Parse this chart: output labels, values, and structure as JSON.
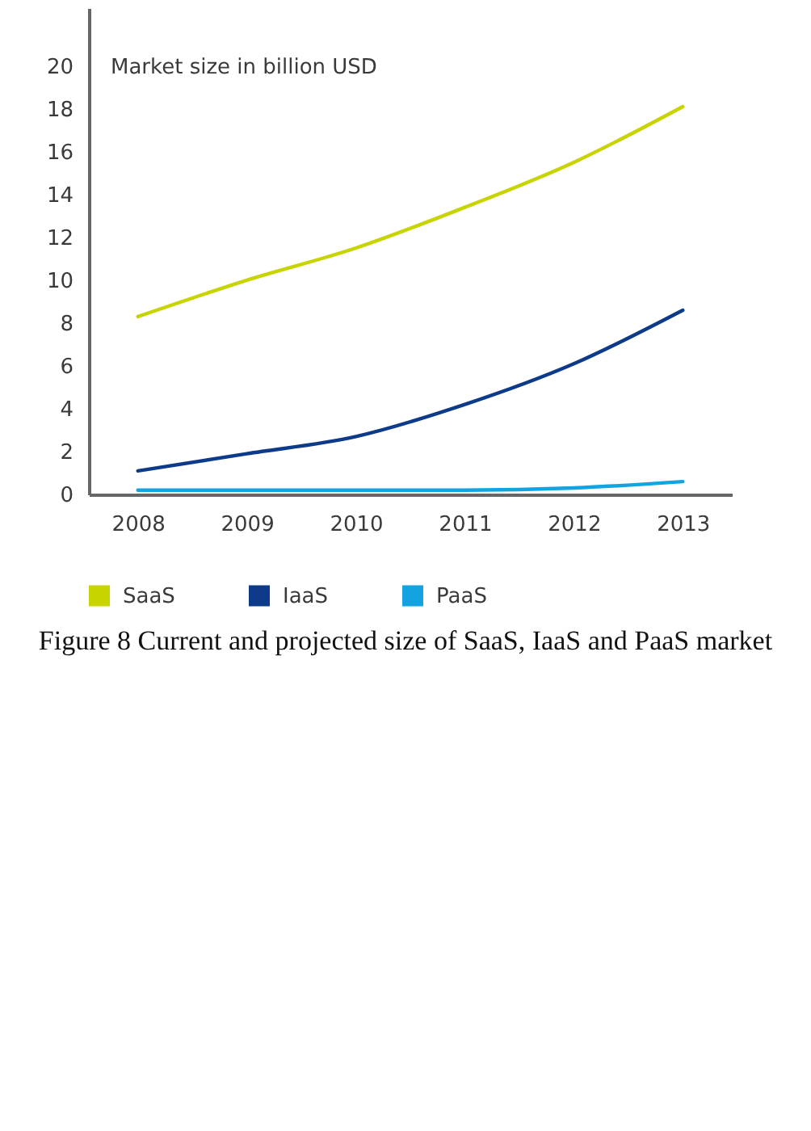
{
  "chart_data": {
    "type": "line",
    "ylabel": "Market size in billion USD",
    "categories": [
      "2008",
      "2009",
      "2010",
      "2011",
      "2012",
      "2013"
    ],
    "series": [
      {
        "name": "SaaS",
        "color": "#c8d400",
        "values": [
          8.3,
          10.0,
          11.5,
          13.4,
          15.5,
          18.1
        ]
      },
      {
        "name": "IaaS",
        "color": "#0d3b8a",
        "values": [
          1.1,
          1.9,
          2.7,
          4.2,
          6.1,
          8.6
        ]
      },
      {
        "name": "PaaS",
        "color": "#12a3e0",
        "values": [
          0.2,
          0.2,
          0.2,
          0.2,
          0.3,
          0.6
        ]
      }
    ],
    "ylim": [
      0,
      22.7
    ],
    "yticks": [
      0,
      2,
      4,
      6,
      8,
      10,
      12,
      14,
      16,
      18,
      20
    ],
    "legend": "bottom",
    "annotations": [
      "Figure 8 Current and projected size of SaaS, IaaS and PaaS market"
    ]
  }
}
